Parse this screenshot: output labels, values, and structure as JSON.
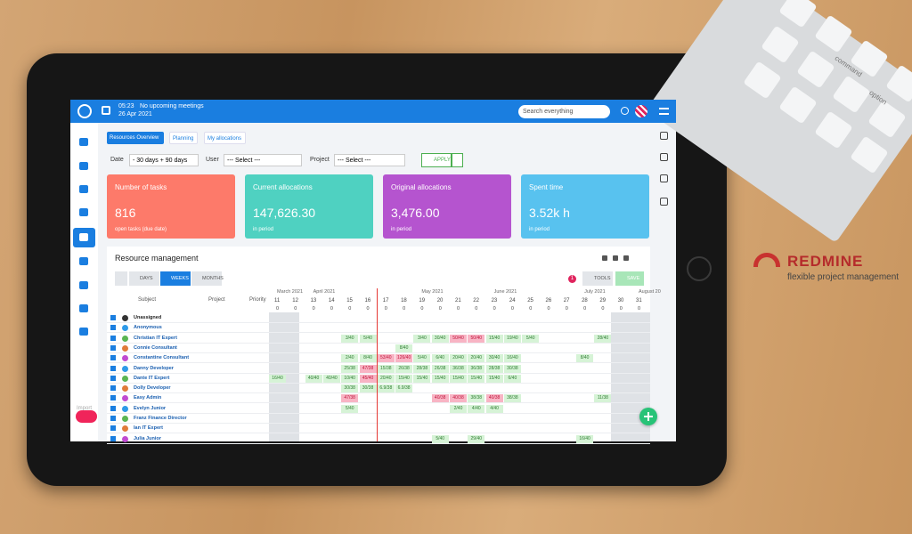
{
  "header": {
    "time": "05:23",
    "meetings": "No upcoming meetings",
    "date": "26 Apr 2021",
    "search": "Search everything"
  },
  "tabs": [
    "Resources Overview",
    "Planning",
    "My allocations"
  ],
  "filters": {
    "date_label": "Date",
    "date_value": "- 30 days + 90 days",
    "user_label": "User",
    "user_value": "--- Select ---",
    "project_label": "Project",
    "project_value": "--- Select ---",
    "apply": "APPLY"
  },
  "cards": [
    {
      "title": "Number of tasks",
      "value": "816",
      "note": "open tasks (due date)",
      "color": "#fd7a6a"
    },
    {
      "title": "Current allocations",
      "value": "147,626.30",
      "note": "in period",
      "color": "#4fd1c1"
    },
    {
      "title": "Original allocations",
      "value": "3,476.00",
      "note": "in period",
      "color": "#b554cf"
    },
    {
      "title": "Spent time",
      "value": "3.52k h",
      "note": "in period",
      "color": "#58c2ef"
    }
  ],
  "panel": {
    "title": "Resource management",
    "views": [
      "DAYS",
      "WEEKS",
      "MONTHS"
    ],
    "badge": "1",
    "tools": "TOOLS",
    "save": "SAVE",
    "columns": [
      "Subject",
      "Project",
      "Priority"
    ],
    "months": [
      "March 2021",
      "April 2021",
      "May 2021",
      "June 2021",
      "July 2021",
      "August 20"
    ],
    "weeks": [
      "11",
      "12",
      "13",
      "14",
      "15",
      "16",
      "17",
      "18",
      "19",
      "20",
      "21",
      "22",
      "23",
      "24",
      "25",
      "26",
      "27",
      "28",
      "29",
      "30",
      "31"
    ],
    "week_totals": [
      "0",
      "0",
      "0",
      "0",
      "0",
      "0",
      "0",
      "0",
      "0",
      "0",
      "0",
      "0",
      "0",
      "0",
      "0",
      "0",
      "0",
      "0",
      "0",
      "0",
      "0"
    ],
    "rows": [
      {
        "name": "Unassigned",
        "cells": [
          null,
          null,
          null,
          null,
          null,
          null,
          null,
          null,
          null,
          null,
          null,
          null,
          null,
          null,
          null,
          null,
          null,
          null,
          null,
          null,
          null
        ]
      },
      {
        "name": "Anonymous",
        "cells": [
          null,
          null,
          null,
          null,
          null,
          null,
          null,
          null,
          null,
          null,
          null,
          null,
          null,
          null,
          null,
          null,
          null,
          null,
          null,
          null,
          null
        ]
      },
      {
        "name": "Christian IT Expert",
        "cells": [
          null,
          null,
          null,
          null,
          "3/40",
          "5/40",
          null,
          null,
          "3/40",
          "30/40",
          "50/40",
          "50/40",
          "15/40",
          "19/40",
          "5/40",
          null,
          null,
          null,
          "28/40",
          null,
          null
        ]
      },
      {
        "name": "Connie Consultant",
        "cells": [
          null,
          null,
          null,
          null,
          null,
          null,
          null,
          "8/40",
          null,
          null,
          null,
          null,
          null,
          null,
          null,
          null,
          null,
          null,
          null,
          null,
          null
        ]
      },
      {
        "name": "Constantine Consultant",
        "cells": [
          null,
          null,
          null,
          null,
          "2/40",
          "8/40",
          "53/40",
          "126/40",
          "5/40",
          "6/40",
          "20/40",
          "20/40",
          "30/40",
          "16/40",
          null,
          null,
          null,
          "8/40",
          null,
          null,
          null
        ]
      },
      {
        "name": "Danny Developer",
        "cells": [
          null,
          null,
          null,
          null,
          "25/38",
          "47/38",
          "15/38",
          "26/38",
          "28/38",
          "26/38",
          "36/38",
          "36/38",
          "28/38",
          "30/38",
          null,
          null,
          null,
          null,
          null,
          null,
          null
        ]
      },
      {
        "name": "Dante IT Expert",
        "cells": [
          "16/40",
          null,
          "40/40",
          "40/40",
          "10/40",
          "45/40",
          "20/40",
          "15/40",
          "15/40",
          "15/40",
          "15/40",
          "15/40",
          "15/40",
          "6/40",
          null,
          null,
          null,
          null,
          null,
          null,
          null
        ]
      },
      {
        "name": "Dolly Developer",
        "cells": [
          null,
          null,
          null,
          null,
          "30/38",
          "30/38",
          "6.9/38",
          "6.9/38",
          null,
          null,
          null,
          null,
          null,
          null,
          null,
          null,
          null,
          null,
          null,
          null,
          null
        ]
      },
      {
        "name": "Easy Admin",
        "cells": [
          null,
          null,
          null,
          null,
          "47/38",
          null,
          null,
          null,
          null,
          "40/38",
          "40/38",
          "38/38",
          "40/38",
          "38/38",
          null,
          null,
          null,
          null,
          "11/38",
          null,
          null
        ]
      },
      {
        "name": "Evelyn Junior",
        "cells": [
          null,
          null,
          null,
          null,
          "5/40",
          null,
          null,
          null,
          null,
          null,
          "2/40",
          "4/40",
          "4/40",
          null,
          null,
          null,
          null,
          null,
          null,
          null,
          null
        ]
      },
      {
        "name": "Franz Finance Director",
        "cells": [
          null,
          null,
          null,
          null,
          null,
          null,
          null,
          null,
          null,
          null,
          null,
          null,
          null,
          null,
          null,
          null,
          null,
          null,
          null,
          null,
          null
        ]
      },
      {
        "name": "Ian IT Expert",
        "cells": [
          null,
          null,
          null,
          null,
          null,
          null,
          null,
          null,
          null,
          null,
          null,
          null,
          null,
          null,
          null,
          null,
          null,
          null,
          null,
          null,
          null
        ]
      },
      {
        "name": "Julia Junior",
        "cells": [
          null,
          null,
          null,
          null,
          null,
          null,
          null,
          null,
          null,
          "5/40",
          null,
          "29/40",
          null,
          null,
          null,
          null,
          null,
          "16/40",
          null,
          null,
          null
        ]
      }
    ]
  },
  "sidebar": {
    "import": "Import"
  },
  "brand": {
    "name": "REDMINE",
    "tagline": "flexible project management"
  },
  "keyboard": {
    "keys": [
      "command",
      "option"
    ]
  }
}
